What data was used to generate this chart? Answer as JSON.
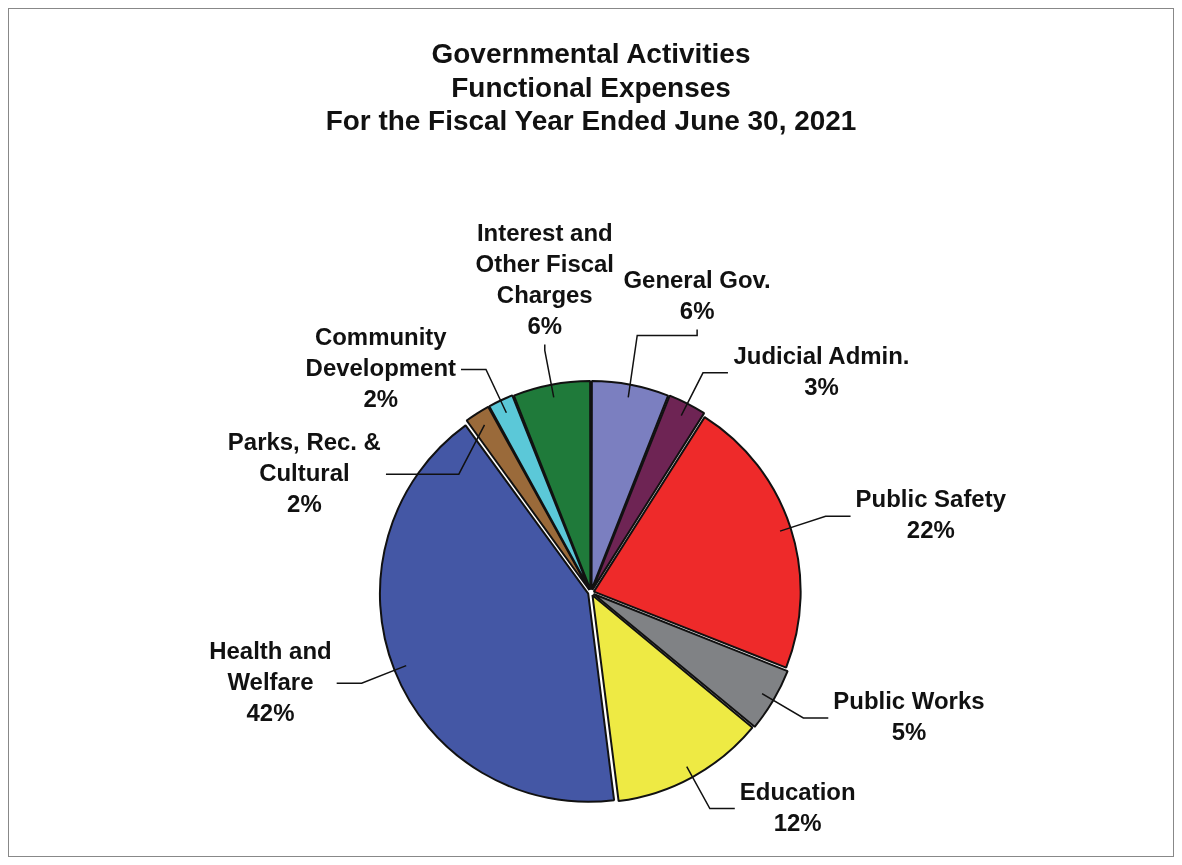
{
  "chart_data": {
    "type": "pie",
    "title": "Governmental Activities\nFunctional Expenses\nFor the Fiscal Year Ended June 30, 2021",
    "categories": [
      "General Gov.",
      "Judicial Admin.",
      "Public Safety",
      "Public Works",
      "Education",
      "Health and Welfare",
      "Parks, Rec. & Cultural",
      "Community Development",
      "Interest and Other Fiscal Charges"
    ],
    "values": [
      6,
      3,
      22,
      5,
      12,
      42,
      2,
      2,
      6
    ],
    "colors": [
      "#7b7fc0",
      "#6e2454",
      "#ee2a2a",
      "#808285",
      "#eeea44",
      "#4457a5",
      "#9a6a3a",
      "#5bc8d8",
      "#1f7a3a"
    ],
    "value_labels": [
      "6%",
      "3%",
      "22%",
      "5%",
      "12%",
      "42%",
      "2%",
      "2%",
      "6%"
    ],
    "legend": false
  }
}
